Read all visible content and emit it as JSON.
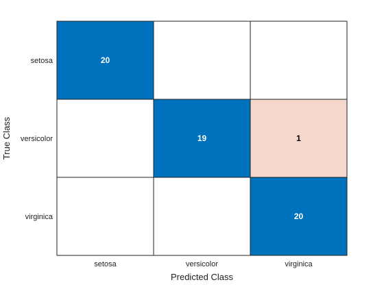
{
  "chart_data": {
    "type": "heatmap",
    "title": "",
    "xlabel": "Predicted Class",
    "ylabel": "True Class",
    "x_categories": [
      "setosa",
      "versicolor",
      "virginica"
    ],
    "y_categories": [
      "setosa",
      "versicolor",
      "virginica"
    ],
    "values": [
      [
        20,
        0,
        0
      ],
      [
        0,
        19,
        1
      ],
      [
        0,
        0,
        20
      ]
    ],
    "show_zero_labels": false,
    "colors": {
      "diagonal": "#0072bd",
      "off_diagonal_error": "#f5d7cb",
      "empty": "#ffffff",
      "grid": "#222222",
      "diagonal_text": "#ffffff",
      "off_diagonal_text": "#000000",
      "axis_text": "#222222"
    }
  }
}
